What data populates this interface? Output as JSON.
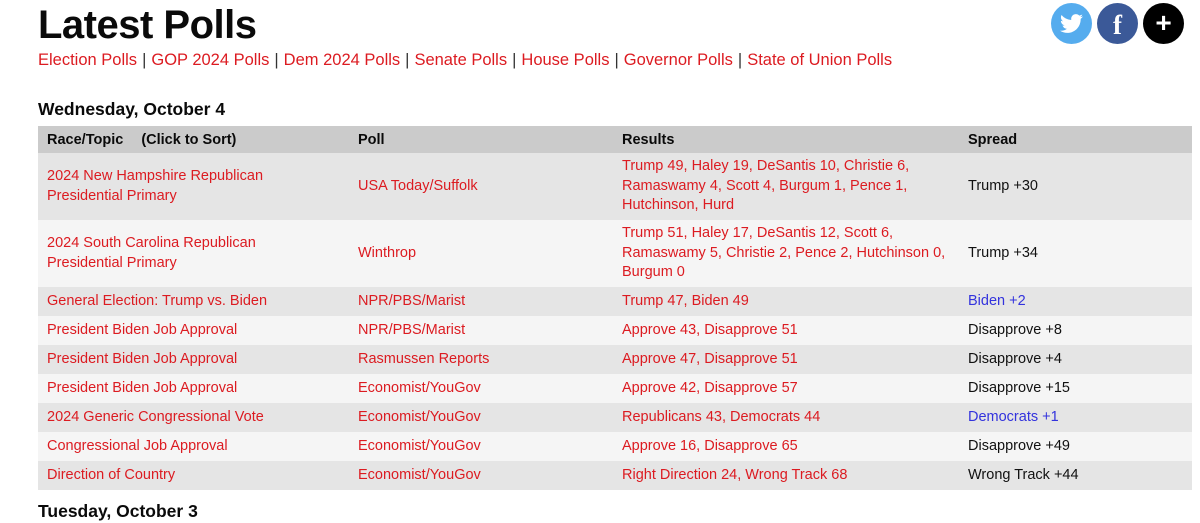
{
  "page": {
    "title": "Latest Polls"
  },
  "social_icons": [
    {
      "name": "twitter",
      "color": "#55acee"
    },
    {
      "name": "facebook",
      "color": "#3b5998"
    },
    {
      "name": "share-plus",
      "color": "#000000",
      "glyph": "+"
    }
  ],
  "nav": {
    "separator": "|",
    "links": [
      "Election Polls",
      "GOP 2024 Polls",
      "Dem 2024 Polls",
      "Senate Polls",
      "House Polls",
      "Governor Polls",
      "State of Union Polls"
    ]
  },
  "colors": {
    "link_red": "#dc1b21",
    "spread_blue": "#3333dd",
    "header_row_bg": "#cbcbcb",
    "row_gray": "#e5e5e5",
    "row_light": "#f5f5f5"
  },
  "sections": [
    {
      "date": "Wednesday, October 4",
      "table": {
        "headers": {
          "race": "Race/Topic",
          "sort_hint": "(Click to Sort)",
          "poll": "Poll",
          "results": "Results",
          "spread": "Spread"
        },
        "rows": [
          {
            "race": "2024 New Hampshire Republican Presidential Primary",
            "poll": "USA Today/Suffolk",
            "results": "Trump 49, Haley 19, DeSantis 10, Christie 6, Ramaswamy 4, Scott 4, Burgum 1, Pence 1, Hutchinson, Hurd",
            "spread": "Trump +30",
            "spread_color": "black",
            "tall": true
          },
          {
            "race": "2024 South Carolina Republican Presidential Primary",
            "poll": "Winthrop",
            "results": "Trump 51, Haley 17, DeSantis 12, Scott 6, Ramaswamy 5, Christie 2, Pence 2, Hutchinson 0, Burgum 0",
            "spread": "Trump +34",
            "spread_color": "black",
            "tall": true
          },
          {
            "race": "General Election: Trump vs. Biden",
            "poll": "NPR/PBS/Marist",
            "results": "Trump 47, Biden 49",
            "spread": "Biden +2",
            "spread_color": "blue",
            "tall": false
          },
          {
            "race": "President Biden Job Approval",
            "poll": "NPR/PBS/Marist",
            "results": "Approve 43, Disapprove 51",
            "spread": "Disapprove +8",
            "spread_color": "black",
            "tall": false
          },
          {
            "race": "President Biden Job Approval",
            "poll": "Rasmussen Reports",
            "results": "Approve 47, Disapprove 51",
            "spread": "Disapprove +4",
            "spread_color": "black",
            "tall": false
          },
          {
            "race": "President Biden Job Approval",
            "poll": "Economist/YouGov",
            "results": "Approve 42, Disapprove 57",
            "spread": "Disapprove +15",
            "spread_color": "black",
            "tall": false
          },
          {
            "race": "2024 Generic Congressional Vote",
            "poll": "Economist/YouGov",
            "results": "Republicans 43, Democrats 44",
            "spread": "Democrats +1",
            "spread_color": "blue",
            "tall": false
          },
          {
            "race": "Congressional Job Approval",
            "poll": "Economist/YouGov",
            "results": "Approve 16, Disapprove 65",
            "spread": "Disapprove +49",
            "spread_color": "black",
            "tall": false
          },
          {
            "race": "Direction of Country",
            "poll": "Economist/YouGov",
            "results": "Right Direction 24, Wrong Track 68",
            "spread": "Wrong Track +44",
            "spread_color": "black",
            "tall": false
          }
        ]
      }
    },
    {
      "date": "Tuesday, October 3"
    }
  ]
}
